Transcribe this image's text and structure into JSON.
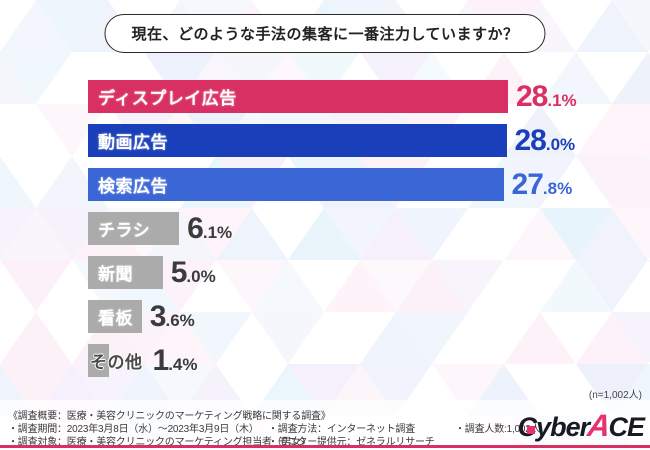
{
  "header": {
    "title": "現在、どのような手法の集客に一番注力していますか？"
  },
  "chart_data": {
    "type": "bar",
    "orientation": "horizontal",
    "title": "現在、どのような手法の集客に一番注力していますか？",
    "unit": "%",
    "categories": [
      "ディスプレイ広告",
      "動画広告",
      "検索広告",
      "チラシ",
      "新聞",
      "看板",
      "その他"
    ],
    "values": [
      28.1,
      28.0,
      27.8,
      6.1,
      5.0,
      3.6,
      1.4
    ],
    "bar_colors": [
      "#d93064",
      "#1a3fba",
      "#3b66d6",
      "#ababab",
      "#ababab",
      "#ababab",
      "#ababab"
    ],
    "value_colors": [
      "#d93064",
      "#1a3fba",
      "#3b66d6",
      "#3b3b3b",
      "#3b3b3b",
      "#3b3b3b",
      "#3b3b3b"
    ],
    "label_inside": [
      true,
      true,
      true,
      true,
      true,
      true,
      false
    ],
    "xlim": [
      0,
      28.1
    ],
    "grid": false,
    "legend": "none",
    "sample_note": "(n=1,002人)"
  },
  "footer": {
    "overview": "《調査概要：医療・美容クリニックのマーケティング戦略に関する調査》",
    "period": "・調査期間：2023年3月8日（水）～2023年3月9日（木）",
    "target": "・調査対象：医療・美容クリニックのマーケティング担当者（男女）",
    "method": "・調査方法：インターネット調査",
    "monitor": "・モニター提供元：ゼネラルリサーチ",
    "people": "・調査人数:1,002人"
  },
  "logo": {
    "cyber": "Cyber",
    "a": "A",
    "ce": "CE"
  },
  "colors": {
    "accent_pink": "#d93064",
    "accent_blue_dark": "#1a3fba",
    "accent_blue": "#3b66d6",
    "bar_gray": "#ababab",
    "footer_line": "#d92f63"
  }
}
